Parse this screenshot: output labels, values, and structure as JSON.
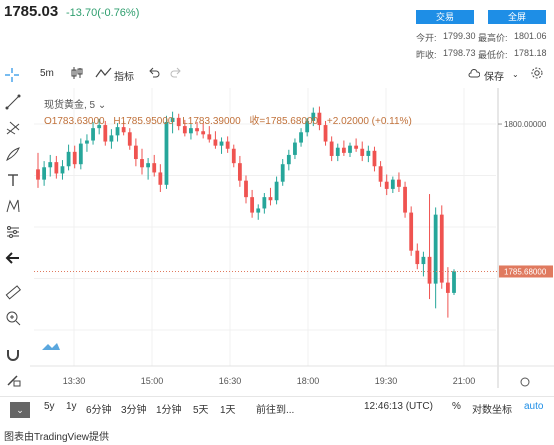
{
  "header": {
    "price": "1785.03",
    "change": "-13.70(-0.76%)",
    "trade_button": "交易",
    "screen_button": "全屏",
    "stats": {
      "today_open_label": "今开:",
      "today_open": "1799.30",
      "high_label": "最高价:",
      "high": "1801.06",
      "prev_close_label": "昨收:",
      "prev_close": "1798.73",
      "low_label": "最低价:",
      "low": "1781.18"
    }
  },
  "toolbar": {
    "interval": "5m",
    "indicators_label": "指标",
    "save_label": "保存"
  },
  "legend": {
    "symbol": "现货黄金, 5",
    "open": "O1783.63000",
    "high": "H1785.95000",
    "low": "L1783.39000",
    "close": "收=1785.68000",
    "change": "+2.02000 (+0.11%)"
  },
  "chart_data": {
    "type": "candlestick",
    "symbol": "现货黄金",
    "interval": "5",
    "y_axis_labels": [
      "1800.00000"
    ],
    "last_price_label": "1785.68000",
    "x_tick_labels": [
      "13:30",
      "15:00",
      "16:30",
      "18:00",
      "19:30",
      "21:00"
    ],
    "ohlc": [
      [
        1795.6,
        1797.2,
        1793.8,
        1794.6
      ],
      [
        1794.6,
        1796.4,
        1794.0,
        1795.8
      ],
      [
        1795.8,
        1797.0,
        1794.9,
        1796.3
      ],
      [
        1796.3,
        1796.9,
        1794.7,
        1795.2
      ],
      [
        1795.2,
        1796.5,
        1794.6,
        1795.9
      ],
      [
        1795.9,
        1798.0,
        1795.5,
        1797.3
      ],
      [
        1797.3,
        1797.9,
        1795.7,
        1796.1
      ],
      [
        1796.1,
        1798.6,
        1795.6,
        1798.1
      ],
      [
        1798.1,
        1799.0,
        1797.3,
        1798.4
      ],
      [
        1798.4,
        1800.2,
        1798.0,
        1799.6
      ],
      [
        1799.6,
        1800.5,
        1799.0,
        1799.9
      ],
      [
        1799.9,
        1800.3,
        1797.9,
        1798.3
      ],
      [
        1798.3,
        1799.5,
        1797.6,
        1798.9
      ],
      [
        1798.9,
        1800.1,
        1798.3,
        1799.7
      ],
      [
        1799.7,
        1800.3,
        1798.9,
        1799.2
      ],
      [
        1799.2,
        1799.6,
        1797.5,
        1797.9
      ],
      [
        1797.9,
        1798.6,
        1795.9,
        1796.6
      ],
      [
        1796.6,
        1797.6,
        1795.1,
        1795.8
      ],
      [
        1795.8,
        1796.7,
        1794.6,
        1796.2
      ],
      [
        1796.2,
        1797.0,
        1794.9,
        1795.3
      ],
      [
        1795.3,
        1796.1,
        1793.4,
        1794.1
      ],
      [
        1794.1,
        1800.8,
        1793.7,
        1800.2
      ],
      [
        1800.2,
        1801.2,
        1799.1,
        1800.6
      ],
      [
        1800.6,
        1801.0,
        1799.4,
        1799.8
      ],
      [
        1799.8,
        1800.4,
        1798.8,
        1799.1
      ],
      [
        1799.1,
        1800.0,
        1798.5,
        1799.6
      ],
      [
        1799.6,
        1800.2,
        1798.9,
        1799.3
      ],
      [
        1799.3,
        1800.1,
        1798.6,
        1799.0
      ],
      [
        1799.0,
        1799.8,
        1798.2,
        1798.5
      ],
      [
        1798.5,
        1799.3,
        1797.6,
        1797.9
      ],
      [
        1797.9,
        1798.7,
        1797.1,
        1798.3
      ],
      [
        1798.3,
        1798.8,
        1797.2,
        1797.6
      ],
      [
        1797.6,
        1798.0,
        1795.8,
        1796.2
      ],
      [
        1796.2,
        1796.9,
        1793.9,
        1794.5
      ],
      [
        1794.5,
        1795.0,
        1792.3,
        1792.9
      ],
      [
        1792.9,
        1793.6,
        1790.9,
        1791.4
      ],
      [
        1791.4,
        1792.2,
        1790.7,
        1791.8
      ],
      [
        1791.8,
        1793.3,
        1791.3,
        1792.9
      ],
      [
        1792.9,
        1793.8,
        1792.1,
        1792.6
      ],
      [
        1792.6,
        1794.9,
        1792.2,
        1794.4
      ],
      [
        1794.4,
        1796.6,
        1794.0,
        1796.1
      ],
      [
        1796.1,
        1797.5,
        1795.5,
        1797.0
      ],
      [
        1797.0,
        1798.6,
        1796.6,
        1798.2
      ],
      [
        1798.2,
        1799.6,
        1797.8,
        1799.2
      ],
      [
        1799.2,
        1800.6,
        1798.8,
        1800.3
      ],
      [
        1800.3,
        1801.6,
        1799.8,
        1801.1
      ],
      [
        1801.1,
        1801.7,
        1799.4,
        1799.9
      ],
      [
        1799.9,
        1800.3,
        1797.9,
        1798.3
      ],
      [
        1798.3,
        1798.8,
        1796.4,
        1796.9
      ],
      [
        1796.9,
        1798.1,
        1796.4,
        1797.7
      ],
      [
        1797.7,
        1798.4,
        1796.9,
        1797.2
      ],
      [
        1797.2,
        1798.2,
        1796.8,
        1797.9
      ],
      [
        1797.9,
        1798.6,
        1797.3,
        1797.6
      ],
      [
        1797.6,
        1798.3,
        1796.4,
        1796.9
      ],
      [
        1796.9,
        1797.9,
        1796.3,
        1797.4
      ],
      [
        1797.4,
        1797.8,
        1795.4,
        1795.9
      ],
      [
        1795.9,
        1796.4,
        1793.9,
        1794.4
      ],
      [
        1794.4,
        1795.1,
        1793.1,
        1793.7
      ],
      [
        1793.7,
        1794.9,
        1793.3,
        1794.6
      ],
      [
        1794.6,
        1795.3,
        1793.4,
        1793.9
      ],
      [
        1793.9,
        1794.4,
        1790.9,
        1791.4
      ],
      [
        1791.4,
        1792.0,
        1787.2,
        1787.7
      ],
      [
        1787.7,
        1788.4,
        1785.9,
        1786.4
      ],
      [
        1786.4,
        1787.6,
        1785.2,
        1787.1
      ],
      [
        1787.1,
        1793.2,
        1783.0,
        1784.5
      ],
      [
        1784.5,
        1791.9,
        1782.1,
        1791.2
      ],
      [
        1791.2,
        1792.1,
        1784.0,
        1784.6
      ],
      [
        1784.6,
        1786.1,
        1781.2,
        1783.6
      ],
      [
        1783.6,
        1785.9,
        1783.4,
        1785.7
      ]
    ]
  },
  "bottom": {
    "ranges": [
      "5y",
      "1y",
      "6分钟",
      "3分钟",
      "1分钟",
      "5天",
      "1天"
    ],
    "goto": "前往到...",
    "time": "12:46:13 (UTC)",
    "percent": "%",
    "log": "对数坐标",
    "auto": "auto"
  },
  "footer": "图表由TradingView提供",
  "colors": {
    "up": "#26a69a",
    "down": "#ef5350",
    "accent": "#1e8ee6",
    "last_price": "#e07a5f"
  }
}
